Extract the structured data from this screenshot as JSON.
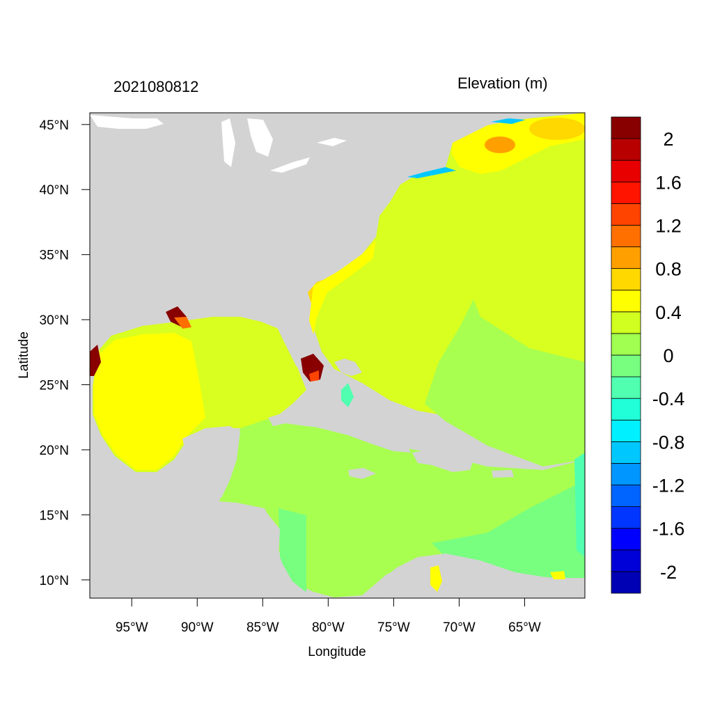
{
  "title_left": "2021080812",
  "title_right": "Elevation (m)",
  "xlabel": "Longitude",
  "ylabel": "Latitude",
  "map": {
    "region": "Gulf of Mexico, Caribbean Sea and western North Atlantic",
    "lon_range": [
      -98.2,
      -60.4
    ],
    "lat_range": [
      8.6,
      45.9
    ],
    "land_color": "#d3d3d3",
    "lon_ticks": [
      {
        "value": -95,
        "label": "95°W"
      },
      {
        "value": -90,
        "label": "90°W"
      },
      {
        "value": -85,
        "label": "85°W"
      },
      {
        "value": -80,
        "label": "80°W"
      },
      {
        "value": -75,
        "label": "75°W"
      },
      {
        "value": -70,
        "label": "70°W"
      },
      {
        "value": -65,
        "label": "65°W"
      }
    ],
    "lat_ticks": [
      {
        "value": 10,
        "label": "10°N"
      },
      {
        "value": 15,
        "label": "15°N"
      },
      {
        "value": 20,
        "label": "20°N"
      },
      {
        "value": 25,
        "label": "25°N"
      },
      {
        "value": 30,
        "label": "30°N"
      },
      {
        "value": 35,
        "label": "35°N"
      },
      {
        "value": 40,
        "label": "40°N"
      },
      {
        "value": 45,
        "label": "45°N"
      }
    ]
  },
  "colorbar": {
    "levels": [
      -2.2,
      -2.0,
      -1.8,
      -1.6,
      -1.4,
      -1.2,
      -1.0,
      -0.8,
      -0.6,
      -0.4,
      -0.2,
      0.0,
      0.2,
      0.4,
      0.6,
      0.8,
      1.0,
      1.2,
      1.4,
      1.6,
      1.8,
      2.0,
      2.2
    ],
    "colors": [
      "#0000b4",
      "#0000d8",
      "#0000ff",
      "#0036ff",
      "#0064ff",
      "#0096ff",
      "#00c8ff",
      "#00f0ff",
      "#20ffd8",
      "#50ffb0",
      "#78ff80",
      "#a0ff50",
      "#d0ff20",
      "#ffff00",
      "#ffd800",
      "#ffa000",
      "#ff7000",
      "#ff4400",
      "#ff1400",
      "#e80000",
      "#b80000",
      "#880000"
    ],
    "labels": [
      {
        "value": -2.0,
        "label": "-2"
      },
      {
        "value": -1.6,
        "label": "-1.6"
      },
      {
        "value": -1.2,
        "label": "-1.2"
      },
      {
        "value": -0.8,
        "label": "-0.8"
      },
      {
        "value": -0.4,
        "label": "-0.4"
      },
      {
        "value": 0.0,
        "label": "0"
      },
      {
        "value": 0.4,
        "label": "0.4"
      },
      {
        "value": 0.8,
        "label": "0.8"
      },
      {
        "value": 1.2,
        "label": "1.2"
      },
      {
        "value": 1.6,
        "label": "1.6"
      },
      {
        "value": 2.0,
        "label": "2"
      }
    ]
  }
}
